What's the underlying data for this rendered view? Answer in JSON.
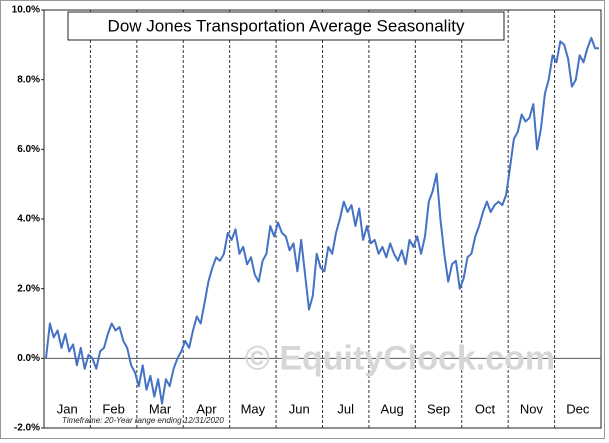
{
  "chart_data": {
    "type": "line",
    "title": "Dow Jones Transportation Average Seasonality",
    "watermark": "© EquityClock.com",
    "footnote": "Timeframe: 20-Year range ending 12/31/2020",
    "month_labels": [
      "Jan",
      "Feb",
      "Mar",
      "Apr",
      "May",
      "Jun",
      "Jul",
      "Aug",
      "Sep",
      "Oct",
      "Nov",
      "Dec"
    ],
    "color": "#4472c4",
    "values": [
      0.0,
      1.0,
      0.6,
      0.8,
      0.3,
      0.7,
      0.2,
      0.4,
      -0.2,
      0.3,
      -0.3,
      0.1,
      0.0,
      -0.3,
      0.2,
      0.3,
      0.7,
      1.0,
      0.8,
      0.9,
      0.5,
      0.3,
      -0.2,
      -0.4,
      -0.8,
      -0.2,
      -0.9,
      -0.5,
      -1.1,
      -0.6,
      -1.3,
      -0.6,
      -0.8,
      -0.3,
      0.0,
      0.2,
      0.5,
      0.3,
      0.8,
      1.2,
      1.0,
      1.6,
      2.2,
      2.6,
      2.9,
      2.8,
      3.0,
      3.6,
      3.4,
      3.7,
      3.0,
      3.2,
      2.7,
      2.9,
      2.4,
      2.2,
      2.8,
      3.0,
      3.8,
      3.5,
      3.9,
      3.6,
      3.5,
      3.1,
      3.3,
      2.5,
      3.4,
      2.4,
      1.4,
      1.8,
      3.0,
      2.6,
      2.5,
      3.2,
      3.0,
      3.6,
      4.0,
      4.5,
      4.2,
      4.4,
      3.8,
      4.3,
      3.4,
      3.8,
      3.3,
      3.4,
      3.0,
      3.2,
      2.9,
      3.3,
      3.0,
      2.8,
      3.1,
      2.7,
      3.4,
      3.2,
      3.5,
      3.0,
      3.5,
      4.5,
      4.8,
      5.3,
      4.0,
      3.0,
      2.2,
      2.7,
      2.8,
      2.0,
      2.3,
      2.9,
      3.0,
      3.5,
      3.8,
      4.2,
      4.5,
      4.2,
      4.4,
      4.5,
      4.4,
      4.7,
      5.5,
      6.3,
      6.5,
      7.0,
      6.8,
      6.9,
      7.3,
      6.0,
      6.6,
      7.6,
      8.0,
      8.7,
      8.5,
      9.1,
      9.0,
      8.6,
      7.8,
      8.0,
      8.7,
      8.5,
      8.9,
      9.2,
      8.9,
      8.9
    ],
    "ylim": [
      -2,
      10
    ],
    "yticks": [
      {
        "value": -2,
        "label": "-2.0%"
      },
      {
        "value": 0,
        "label": "0.0%"
      },
      {
        "value": 2,
        "label": "2.0%"
      },
      {
        "value": 4,
        "label": "4.0%"
      },
      {
        "value": 6,
        "label": "6.0%"
      },
      {
        "value": 8,
        "label": "8.0%"
      },
      {
        "value": 10,
        "label": "10.0%"
      }
    ]
  }
}
